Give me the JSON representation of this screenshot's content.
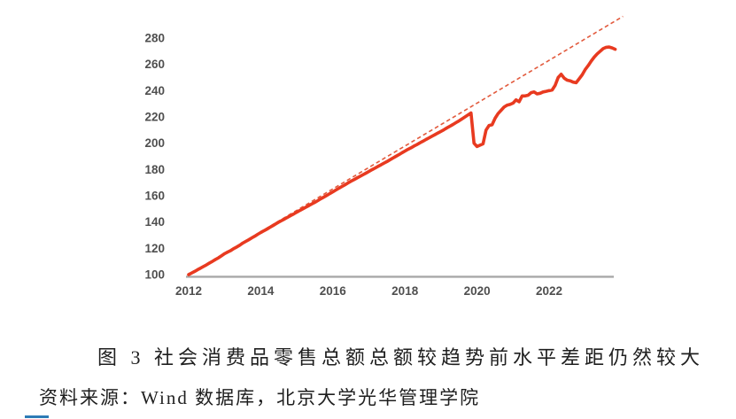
{
  "figure": {
    "caption": "图 3 社会消费品零售总额总额较趋势前水平差距仍然较大",
    "source": "资料来源：Wind 数据库，北京大学光华管理学院"
  },
  "chart_data": {
    "type": "line",
    "title": "图 3 社会消费品零售总额总额较趋势前水平差距仍然较大",
    "xlabel": "",
    "ylabel": "",
    "x_ticks": [
      2012,
      2014,
      2016,
      2018,
      2020,
      2022
    ],
    "y_ticks": [
      100,
      120,
      140,
      160,
      180,
      200,
      220,
      240,
      260,
      280
    ],
    "xlim": [
      2012,
      2023.85
    ],
    "ylim": [
      100,
      280
    ],
    "grid": false,
    "legend": "none",
    "axis_color": "#a8a8a8",
    "tick_label_color": "#4f4f4f",
    "series": [
      {
        "name": "retail-sales-actual",
        "line_style": "solid",
        "color": "#e83a20",
        "start_year": 2012,
        "interval": "monthly",
        "values": [
          100.0,
          101.2,
          102.4,
          103.8,
          105.0,
          106.3,
          107.5,
          108.9,
          110.2,
          111.6,
          112.9,
          114.4,
          116.0,
          117.2,
          118.3,
          119.8,
          121.0,
          122.4,
          124.0,
          125.2,
          126.5,
          127.9,
          129.2,
          130.7,
          132.0,
          133.3,
          134.5,
          135.9,
          137.2,
          138.6,
          140.0,
          141.2,
          142.4,
          143.7,
          145.0,
          146.2,
          147.5,
          148.8,
          150.0,
          151.3,
          152.5,
          153.8,
          155.0,
          156.3,
          157.7,
          159.0,
          160.3,
          161.7,
          163.0,
          164.4,
          165.7,
          167.0,
          168.3,
          169.7,
          171.0,
          172.2,
          173.5,
          174.7,
          176.0,
          177.2,
          178.5,
          179.8,
          181.0,
          182.3,
          183.5,
          184.8,
          186.0,
          187.4,
          188.7,
          190.0,
          191.3,
          192.7,
          194.0,
          195.3,
          196.5,
          197.8,
          199.0,
          200.3,
          201.5,
          202.8,
          204.0,
          205.3,
          206.5,
          207.8,
          209.0,
          210.3,
          211.7,
          213.0,
          214.3,
          215.7,
          217.0,
          218.5,
          220.0,
          221.5,
          223.0,
          200.0,
          197.5,
          198.5,
          199.5,
          210.0,
          213.5,
          214.0,
          219.0,
          222.5,
          225.0,
          227.5,
          229.0,
          229.5,
          230.5,
          233.0,
          231.5,
          236.0,
          236.0,
          236.5,
          238.5,
          239.0,
          237.5,
          238.0,
          239.0,
          239.5,
          240.0,
          240.5,
          244.0,
          250.0,
          252.5,
          249.5,
          248.0,
          247.5,
          246.5,
          246.0,
          249.0,
          252.0,
          256.0,
          259.0,
          262.5,
          265.5,
          268.0,
          270.0,
          272.0,
          273.0,
          273.2,
          272.5,
          271.5
        ]
      },
      {
        "name": "pre-pandemic-trend",
        "line_style": "dashed",
        "color": "#e25a3d",
        "points": [
          [
            2012.0,
            100.0
          ],
          [
            2024.05,
            296.5
          ]
        ]
      }
    ]
  }
}
